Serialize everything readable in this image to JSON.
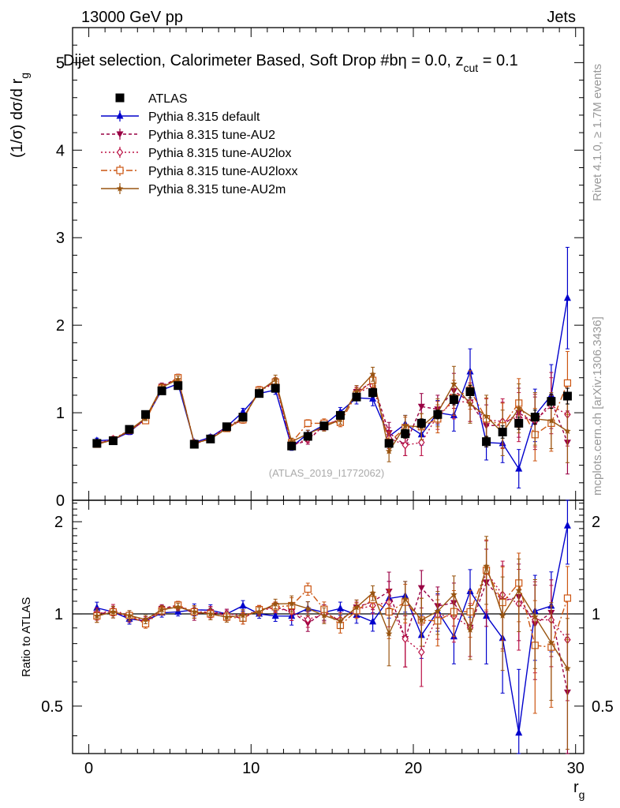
{
  "header": {
    "energy": "13000 GeV pp",
    "category": "Jets"
  },
  "side_labels": {
    "rivet": "Rivet 4.1.0, ≥ 1.7M events",
    "mcplots": "mcplots.cern.ch [arXiv:1306.3436]"
  },
  "chart_data": {
    "type": "line",
    "title": "Dijet selection, Calorimeter Based, Soft Drop #b = 0.0, z_cut = 0.1",
    "title_main": "Dijet selection, Calorimeter Based, Soft Drop #b",
    "title_beta": "η = 0.0, z",
    "title_sub": "cut",
    "title_end": " = 0.1",
    "watermark": "(ATLAS_2019_I1772062)",
    "xlabel": "r",
    "xlabel_sub": "g",
    "ylabel": "(1/σ) dσ/d r",
    "ylabel_sub": "g",
    "ratio_ylabel": "Ratio to ATLAS",
    "xlim": [
      -1,
      30.5
    ],
    "ylim": [
      0,
      5.4
    ],
    "ratio_ylim": [
      0.35,
      2.35
    ],
    "xticks": [
      0,
      10,
      20,
      30
    ],
    "yticks": [
      0,
      1,
      2,
      3,
      4,
      5
    ],
    "ratio_yticks": [
      0.5,
      1,
      2
    ],
    "ratio_yticklabels": [
      "0.5",
      "1",
      "2"
    ],
    "x": [
      0.5,
      1.5,
      2.5,
      3.5,
      4.5,
      5.5,
      6.5,
      7.5,
      8.5,
      9.5,
      10.5,
      11.5,
      12.5,
      13.5,
      14.5,
      15.5,
      16.5,
      17.5,
      18.5,
      19.5,
      20.5,
      21.5,
      22.5,
      23.5,
      24.5,
      25.5,
      26.5,
      27.5,
      28.5,
      29.5
    ],
    "data": {
      "name": "ATLAS",
      "values": [
        0.65,
        0.68,
        0.81,
        0.98,
        1.25,
        1.31,
        0.64,
        0.7,
        0.84,
        0.95,
        1.22,
        1.28,
        0.62,
        0.73,
        0.85,
        0.97,
        1.18,
        1.23,
        0.65,
        0.76,
        0.88,
        0.98,
        1.15,
        1.24,
        0.67,
        0.78,
        0.88,
        0.95,
        1.13,
        1.19
      ],
      "errors": [
        0.02,
        0.02,
        0.02,
        0.03,
        0.03,
        0.03,
        0.02,
        0.02,
        0.02,
        0.03,
        0.03,
        0.03,
        0.02,
        0.02,
        0.03,
        0.03,
        0.04,
        0.05,
        0.04,
        0.05,
        0.05,
        0.05,
        0.06,
        0.07,
        0.06,
        0.07,
        0.07,
        0.08,
        0.08,
        0.09
      ]
    },
    "series": [
      {
        "name": "Pythia 8.315 default",
        "color": "#0000cc",
        "marker": "triangle-up",
        "dash": "",
        "values": [
          0.68,
          0.69,
          0.78,
          0.93,
          1.26,
          1.33,
          0.66,
          0.72,
          0.84,
          1.01,
          1.22,
          1.26,
          0.61,
          0.76,
          0.86,
          1.01,
          1.17,
          1.16,
          0.73,
          0.87,
          0.75,
          1.0,
          0.97,
          1.47,
          0.66,
          0.65,
          0.36,
          0.97,
          1.2,
          2.31
        ],
        "errors": [
          0.03,
          0.03,
          0.03,
          0.03,
          0.04,
          0.04,
          0.03,
          0.03,
          0.03,
          0.04,
          0.04,
          0.05,
          0.04,
          0.04,
          0.05,
          0.05,
          0.07,
          0.08,
          0.1,
          0.1,
          0.12,
          0.14,
          0.18,
          0.26,
          0.2,
          0.22,
          0.22,
          0.3,
          0.35,
          0.58
        ]
      },
      {
        "name": "Pythia 8.315 tune-AU2",
        "color": "#990044",
        "marker": "triangle-down",
        "dash": "4,3",
        "values": [
          0.65,
          0.69,
          0.79,
          0.92,
          1.3,
          1.4,
          0.64,
          0.71,
          0.83,
          0.92,
          1.26,
          1.35,
          0.63,
          0.68,
          0.86,
          0.92,
          1.24,
          1.35,
          0.77,
          0.63,
          1.07,
          1.04,
          1.25,
          1.12,
          0.85,
          0.86,
          1.0,
          0.88,
          1.14,
          0.66
        ],
        "errors": [
          0.03,
          0.03,
          0.03,
          0.03,
          0.04,
          0.04,
          0.03,
          0.03,
          0.03,
          0.04,
          0.04,
          0.05,
          0.04,
          0.04,
          0.05,
          0.05,
          0.07,
          0.08,
          0.12,
          0.12,
          0.15,
          0.16,
          0.2,
          0.22,
          0.24,
          0.26,
          0.28,
          0.3,
          0.32,
          0.36
        ]
      },
      {
        "name": "Pythia 8.315 tune-AU2lox",
        "color": "#bb1144",
        "marker": "diamond-open",
        "dash": "2,3",
        "values": [
          0.65,
          0.7,
          0.8,
          0.93,
          1.29,
          1.39,
          0.65,
          0.71,
          0.84,
          0.94,
          1.25,
          1.34,
          0.63,
          0.7,
          0.85,
          0.93,
          1.22,
          1.31,
          0.71,
          0.63,
          0.66,
          0.97,
          1.13,
          1.12,
          0.92,
          0.9,
          0.95,
          0.91,
          1.08,
          0.98
        ],
        "errors": [
          0.03,
          0.03,
          0.03,
          0.03,
          0.04,
          0.04,
          0.03,
          0.03,
          0.03,
          0.04,
          0.04,
          0.05,
          0.04,
          0.04,
          0.05,
          0.05,
          0.07,
          0.08,
          0.12,
          0.12,
          0.15,
          0.16,
          0.2,
          0.22,
          0.24,
          0.26,
          0.28,
          0.3,
          0.32,
          0.36
        ]
      },
      {
        "name": "Pythia 8.315 tune-AU2loxx",
        "color": "#cc5511",
        "marker": "square-open",
        "dash": "8,3,2,3",
        "values": [
          0.64,
          0.69,
          0.8,
          0.91,
          1.28,
          1.4,
          0.65,
          0.7,
          0.82,
          0.92,
          1.26,
          1.35,
          0.66,
          0.88,
          0.88,
          0.89,
          1.21,
          1.37,
          0.66,
          0.83,
          0.84,
          0.93,
          1.17,
          1.26,
          0.93,
          0.85,
          1.11,
          0.75,
          0.88,
          1.34
        ],
        "errors": [
          0.03,
          0.03,
          0.03,
          0.03,
          0.04,
          0.04,
          0.03,
          0.03,
          0.03,
          0.04,
          0.04,
          0.05,
          0.04,
          0.04,
          0.05,
          0.05,
          0.07,
          0.08,
          0.12,
          0.12,
          0.15,
          0.16,
          0.2,
          0.22,
          0.24,
          0.26,
          0.28,
          0.3,
          0.32,
          0.36
        ]
      },
      {
        "name": "Pythia 8.315 tune-AU2m",
        "color": "#995511",
        "marker": "star",
        "dash": "",
        "values": [
          0.64,
          0.69,
          0.8,
          0.94,
          1.29,
          1.38,
          0.65,
          0.7,
          0.82,
          0.94,
          1.24,
          1.38,
          0.67,
          0.76,
          0.84,
          0.92,
          1.24,
          1.44,
          0.56,
          0.85,
          0.84,
          1.0,
          1.33,
          1.1,
          0.96,
          0.77,
          1.05,
          0.93,
          0.91,
          0.79
        ],
        "errors": [
          0.03,
          0.03,
          0.03,
          0.03,
          0.04,
          0.04,
          0.03,
          0.03,
          0.03,
          0.04,
          0.04,
          0.05,
          0.04,
          0.04,
          0.05,
          0.05,
          0.07,
          0.08,
          0.12,
          0.12,
          0.15,
          0.16,
          0.2,
          0.22,
          0.24,
          0.26,
          0.28,
          0.3,
          0.32,
          0.36
        ]
      }
    ]
  }
}
